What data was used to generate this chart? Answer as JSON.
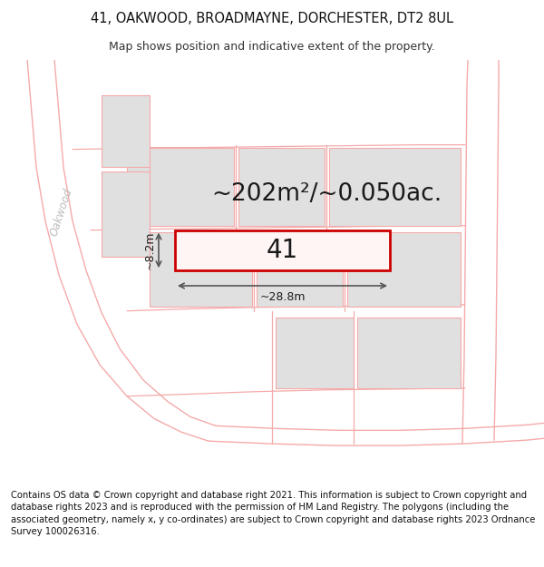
{
  "title_line1": "41, OAKWOOD, BROADMAYNE, DORCHESTER, DT2 8UL",
  "title_line2": "Map shows position and indicative extent of the property.",
  "footer_text": "Contains OS data © Crown copyright and database right 2021. This information is subject to Crown copyright and database rights 2023 and is reproduced with the permission of HM Land Registry. The polygons (including the associated geometry, namely x, y co-ordinates) are subject to Crown copyright and database rights 2023 Ordnance Survey 100026316.",
  "area_label": "~202m²/~0.050ac.",
  "width_label": "~28.8m",
  "height_label": "~8.2m",
  "property_number": "41",
  "bg_color": "#ffffff",
  "map_bg": "#ffffff",
  "plot_outline_color": "#cc0000",
  "neighbor_fill": "#e0e0e0",
  "neighbor_stroke": "#f5aaaa",
  "road_color": "#f5aaaa",
  "road_label": "Oakwood",
  "road_label_color": "#bbbbbb",
  "dimension_color": "#555555",
  "title_fontsize": 10.5,
  "subtitle_fontsize": 9,
  "footer_fontsize": 7.2,
  "area_fontsize": 19,
  "label_fontsize": 20,
  "dim_fontsize": 9
}
